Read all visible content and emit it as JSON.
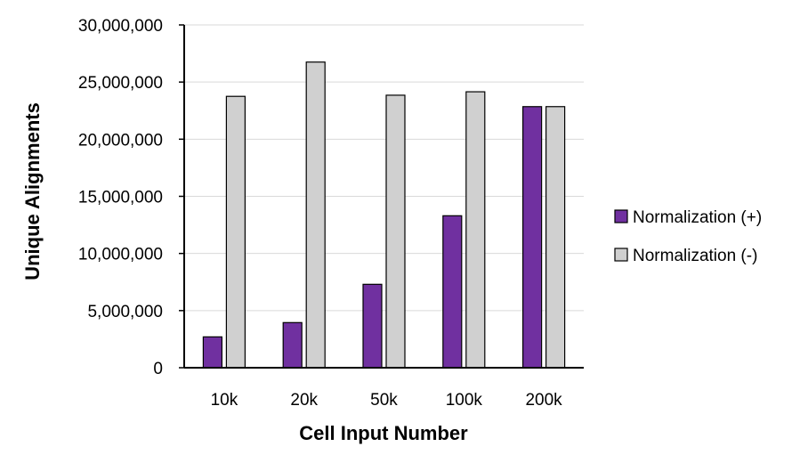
{
  "chart_data": {
    "type": "bar",
    "title": "",
    "xlabel": "Cell Input Number",
    "ylabel": "Unique Alignments",
    "categories": [
      "10k",
      "20k",
      "50k",
      "100k",
      "200k"
    ],
    "series": [
      {
        "name": "Normalization (+)",
        "color": "#7030a0",
        "values": [
          2700000,
          3950000,
          7300000,
          13300000,
          22850000
        ]
      },
      {
        "name": "Normalization (-)",
        "color": "#d0d0d0",
        "values": [
          23750000,
          26750000,
          23850000,
          24150000,
          22850000
        ]
      }
    ],
    "ylim": [
      0,
      30000000
    ],
    "yticks": [
      {
        "value": 0,
        "label": "0"
      },
      {
        "value": 5000000,
        "label": "5,000,000"
      },
      {
        "value": 10000000,
        "label": "10,000,000"
      },
      {
        "value": 15000000,
        "label": "15,000,000"
      },
      {
        "value": 20000000,
        "label": "20,000,000"
      },
      {
        "value": 25000000,
        "label": "25,000,000"
      },
      {
        "value": 30000000,
        "label": "30,000,000"
      }
    ],
    "grid": true,
    "legend_position": "right"
  }
}
